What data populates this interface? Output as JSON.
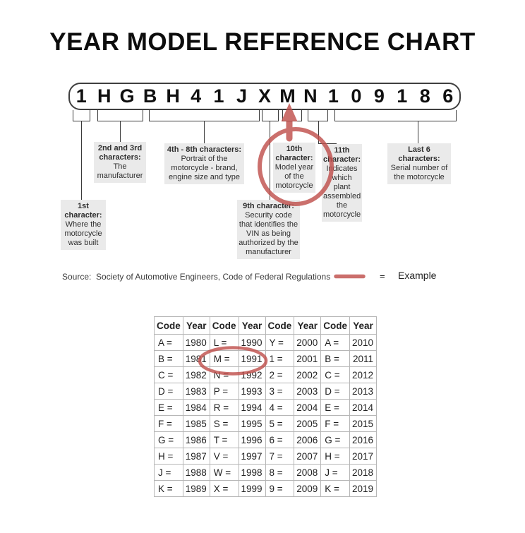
{
  "title": "YEAR MODEL REFERENCE CHART",
  "vin": {
    "characters": [
      "1",
      "H",
      "G",
      "B",
      "H",
      "4",
      "1",
      "J",
      "X",
      "M",
      "N",
      "1",
      "0",
      "9",
      "1",
      "8",
      "6"
    ]
  },
  "callouts": [
    {
      "id": "1st",
      "heading": "1st character:",
      "body": "Where the motorcycle was built"
    },
    {
      "id": "2nd3rd",
      "heading": "2nd and 3rd characters:",
      "body": "The manufacturer"
    },
    {
      "id": "4th8th",
      "heading": "4th - 8th characters:",
      "body": "Portrait of the motorcycle - brand, engine size and type"
    },
    {
      "id": "9th",
      "heading": "9th character:",
      "body": "Security code that identifies the VIN as being authorized by the manufacturer"
    },
    {
      "id": "10th",
      "heading": "10th character:",
      "body": "Model year of the motorcycle"
    },
    {
      "id": "11th",
      "heading": "11th character:",
      "body": "Indicates which plant assembled the motorcycle"
    },
    {
      "id": "last6",
      "heading": "Last 6 characters:",
      "body": "Serial number of the motorcycle"
    }
  ],
  "source_line": "Source:  Society of Automotive Engineers, Code of Federal Regulations",
  "legend": {
    "equals": "=",
    "label": "Example"
  },
  "year_table": {
    "headers": [
      "Code",
      "Year",
      "Code",
      "Year",
      "Code",
      "Year",
      "Code",
      "Year"
    ],
    "rows": [
      [
        "A =",
        "1980",
        "L =",
        "1990",
        "Y =",
        "2000",
        "A =",
        "2010"
      ],
      [
        "B =",
        "1981",
        "M =",
        "1991",
        "1 =",
        "2001",
        "B =",
        "2011"
      ],
      [
        "C =",
        "1982",
        "N =",
        "1992",
        "2 =",
        "2002",
        "C =",
        "2012"
      ],
      [
        "D =",
        "1983",
        "P =",
        "1993",
        "3 =",
        "2003",
        "D =",
        "2013"
      ],
      [
        "E =",
        "1984",
        "R =",
        "1994",
        "4 =",
        "2004",
        "E =",
        "2014"
      ],
      [
        "F =",
        "1985",
        "S =",
        "1995",
        "5 =",
        "2005",
        "F =",
        "2015"
      ],
      [
        "G =",
        "1986",
        "T =",
        "1996",
        "6 =",
        "2006",
        "G =",
        "2016"
      ],
      [
        "H =",
        "1987",
        "V =",
        "1997",
        "7 =",
        "2007",
        "H =",
        "2017"
      ],
      [
        "J =",
        "1988",
        "W =",
        "1998",
        "8 =",
        "2008",
        "J =",
        "2018"
      ],
      [
        "K =",
        "1989",
        "X =",
        "1999",
        "9 =",
        "2009",
        "K =",
        "2019"
      ]
    ],
    "highlighted_cell": "M = 1991"
  },
  "colors": {
    "accent_red": "#c0504d",
    "callout_bg": "#eaeaea",
    "table_border": "#b6b6b6"
  }
}
